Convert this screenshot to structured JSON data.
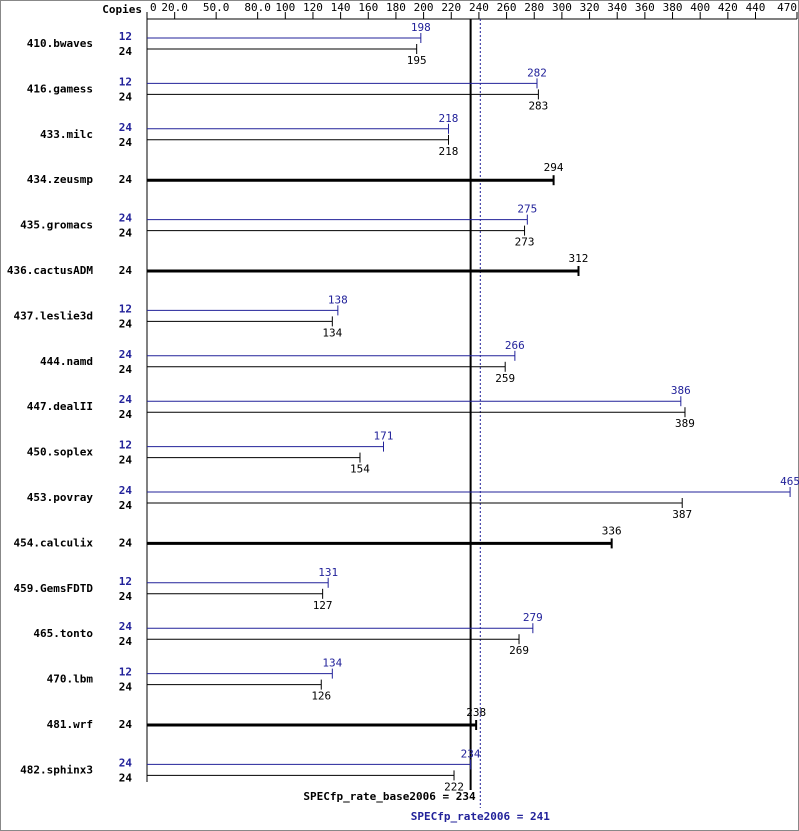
{
  "chart_data": {
    "type": "spec-bar",
    "copies_header": "Copies",
    "xlim": [
      0,
      470
    ],
    "xticks": [
      0,
      {
        "value": 20,
        "label": "20.0"
      },
      {
        "value": 50,
        "label": "50.0"
      },
      {
        "value": 80,
        "label": "80.0"
      },
      100,
      120,
      140,
      160,
      180,
      200,
      220,
      240,
      260,
      280,
      300,
      320,
      340,
      360,
      380,
      400,
      420,
      440,
      470
    ],
    "peak_color": "#22229a",
    "base_color": "#000000",
    "rows": [
      {
        "name": "410.bwaves",
        "peak": {
          "copies": 12,
          "value": 198
        },
        "base": {
          "copies": 24,
          "value": 195
        }
      },
      {
        "name": "416.gamess",
        "peak": {
          "copies": 12,
          "value": 282
        },
        "base": {
          "copies": 24,
          "value": 283
        }
      },
      {
        "name": "433.milc",
        "peak": {
          "copies": 24,
          "value": 218
        },
        "base": {
          "copies": 24,
          "value": 218
        }
      },
      {
        "name": "434.zeusmp",
        "base": {
          "copies": 24,
          "value": 294
        }
      },
      {
        "name": "435.gromacs",
        "peak": {
          "copies": 24,
          "value": 275
        },
        "base": {
          "copies": 24,
          "value": 273
        }
      },
      {
        "name": "436.cactusADM",
        "base": {
          "copies": 24,
          "value": 312
        }
      },
      {
        "name": "437.leslie3d",
        "peak": {
          "copies": 12,
          "value": 138
        },
        "base": {
          "copies": 24,
          "value": 134
        }
      },
      {
        "name": "444.namd",
        "peak": {
          "copies": 24,
          "value": 266
        },
        "base": {
          "copies": 24,
          "value": 259
        }
      },
      {
        "name": "447.dealII",
        "peak": {
          "copies": 24,
          "value": 386
        },
        "base": {
          "copies": 24,
          "value": 389
        }
      },
      {
        "name": "450.soplex",
        "peak": {
          "copies": 12,
          "value": 171
        },
        "base": {
          "copies": 24,
          "value": 154
        }
      },
      {
        "name": "453.povray",
        "peak": {
          "copies": 24,
          "value": 465
        },
        "base": {
          "copies": 24,
          "value": 387
        }
      },
      {
        "name": "454.calculix",
        "base": {
          "copies": 24,
          "value": 336
        }
      },
      {
        "name": "459.GemsFDTD",
        "peak": {
          "copies": 12,
          "value": 131
        },
        "base": {
          "copies": 24,
          "value": 127
        }
      },
      {
        "name": "465.tonto",
        "peak": {
          "copies": 24,
          "value": 279
        },
        "base": {
          "copies": 24,
          "value": 269
        }
      },
      {
        "name": "470.lbm",
        "peak": {
          "copies": 12,
          "value": 134
        },
        "base": {
          "copies": 24,
          "value": 126
        }
      },
      {
        "name": "481.wrf",
        "base": {
          "copies": 24,
          "value": 238
        }
      },
      {
        "name": "482.sphinx3",
        "peak": {
          "copies": 24,
          "value": 234
        },
        "base": {
          "copies": 24,
          "value": 222
        }
      }
    ],
    "base_summary": {
      "label": "SPECfp_rate_base2006 = 234",
      "value": 234
    },
    "peak_summary": {
      "label": "SPECfp_rate2006 = 241",
      "value": 241
    }
  }
}
